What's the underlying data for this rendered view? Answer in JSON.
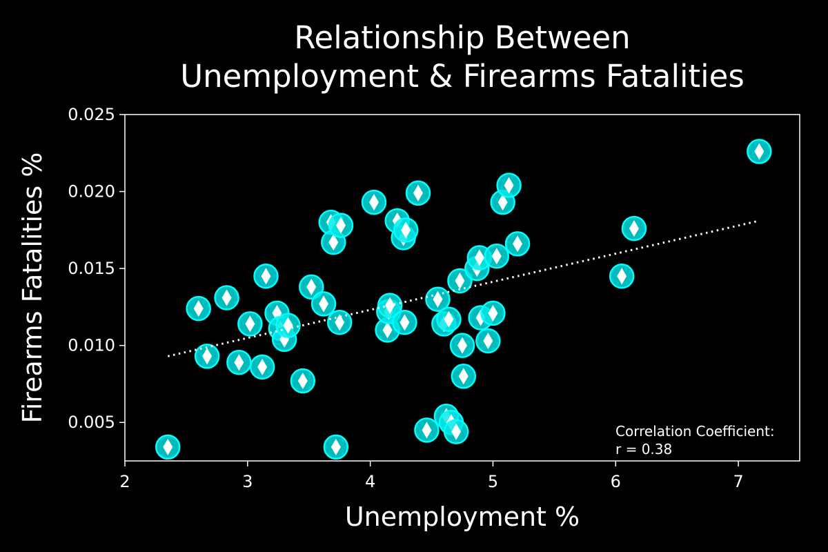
{
  "chart_data": {
    "type": "scatter",
    "title_lines": [
      "Relationship Between",
      "Unemployment & Firearms Fatalities"
    ],
    "xlabel": "Unemployment %",
    "ylabel": "Firearms Fatalities %",
    "xlim": [
      2.0,
      7.5
    ],
    "ylim": [
      0.0025,
      0.025
    ],
    "xticks": [
      2,
      3,
      4,
      5,
      6,
      7
    ],
    "xtick_labels": [
      "2",
      "3",
      "4",
      "5",
      "6",
      "7"
    ],
    "yticks": [
      0.005,
      0.01,
      0.015,
      0.02,
      0.025
    ],
    "ytick_labels": [
      "0.005",
      "0.010",
      "0.015",
      "0.020",
      "0.025"
    ],
    "grid": false,
    "colors": {
      "background": "#000000",
      "marker_fill": "#00e5e5",
      "marker_edge": "#00ffff",
      "diamond": "#ffffff",
      "trendline": "#ffffff",
      "axes": "#ffffff"
    },
    "points": {
      "x": [
        2.35,
        2.6,
        2.67,
        2.83,
        2.93,
        3.02,
        3.12,
        3.15,
        3.24,
        3.27,
        3.3,
        3.33,
        3.45,
        3.52,
        3.62,
        3.68,
        3.7,
        3.72,
        3.75,
        3.76,
        4.03,
        4.14,
        4.15,
        4.16,
        4.22,
        4.27,
        4.28,
        4.29,
        4.39,
        4.46,
        4.55,
        4.6,
        4.62,
        4.64,
        4.66,
        4.7,
        4.73,
        4.75,
        4.76,
        4.87,
        4.89,
        4.9,
        4.96,
        5.0,
        5.03,
        5.08,
        5.13,
        5.2,
        6.05,
        6.15,
        7.17
      ],
      "y": [
        0.0034,
        0.0124,
        0.0093,
        0.0131,
        0.0089,
        0.0114,
        0.0086,
        0.0145,
        0.0121,
        0.0111,
        0.0104,
        0.0113,
        0.0077,
        0.0138,
        0.0127,
        0.018,
        0.0167,
        0.0034,
        0.0115,
        0.0178,
        0.0193,
        0.011,
        0.0122,
        0.0126,
        0.0181,
        0.017,
        0.0115,
        0.0175,
        0.0199,
        0.0045,
        0.013,
        0.0114,
        0.0054,
        0.0117,
        0.005,
        0.0044,
        0.0142,
        0.01,
        0.008,
        0.015,
        0.0157,
        0.0118,
        0.0103,
        0.0121,
        0.0158,
        0.0193,
        0.0204,
        0.0166,
        0.0145,
        0.0176,
        0.0226
      ]
    },
    "trendline": {
      "style": "dotted",
      "x": [
        2.35,
        7.17
      ],
      "y": [
        0.0093,
        0.0181
      ]
    },
    "annotation": {
      "lines": [
        "Correlation Coefficient:",
        "r = 0.38"
      ],
      "placement": "bottom-right"
    }
  }
}
